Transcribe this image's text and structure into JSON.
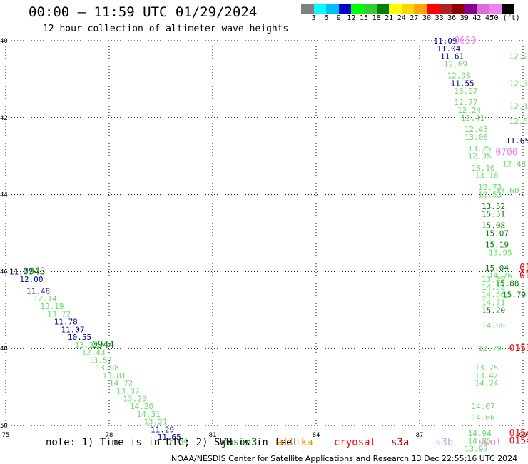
{
  "title": "00:00 – 11:59 UTC 01/29/2024",
  "subtitle": "12 hour collection of altimeter wave heights",
  "legend": {
    "colors": [
      "#808080",
      "#00ffff",
      "#00bfff",
      "#0000cd",
      "#00ff00",
      "#32cd32",
      "#008000",
      "#ffff00",
      "#ffd700",
      "#ffa500",
      "#ff0000",
      "#b22222",
      "#8b0000",
      "#8b008b",
      "#da70d6",
      "#ee82ee",
      "#000000"
    ],
    "labels": [
      "3",
      "6",
      "9",
      "12",
      "15",
      "18",
      "21",
      "24",
      "27",
      "30",
      "33",
      "36",
      "39",
      "42",
      "45",
      "70 (ft)"
    ]
  },
  "axes": {
    "lon_ticks": [
      "75",
      "78",
      "81",
      "84",
      "87",
      "90"
    ],
    "lat_ticks": [
      "40",
      "42",
      "44",
      "46",
      "48",
      "50"
    ]
  },
  "colors": {
    "dark_blue": "#00008b",
    "light_green": "#66dd66",
    "green": "#008000",
    "dark_green": "#006400",
    "red": "#ff0000",
    "pink": "#ee82ee",
    "lavender": "#b0b0ee",
    "orange": "#ff8c00",
    "darkred": "#b00000"
  },
  "chart_data": {
    "type": "scatter",
    "xlim": [
      75,
      90
    ],
    "ylim": [
      40,
      50
    ],
    "points": [
      {
        "lon": 87.4,
        "lat": 40.0,
        "v": "11.09",
        "c": "dark_blue"
      },
      {
        "lon": 87.5,
        "lat": 40.2,
        "v": "11.04",
        "c": "dark_blue"
      },
      {
        "lon": 87.6,
        "lat": 40.4,
        "v": "11.61",
        "c": "dark_blue"
      },
      {
        "lon": 87.7,
        "lat": 40.6,
        "v": "12.69",
        "c": "light_green"
      },
      {
        "lon": 87.8,
        "lat": 40.9,
        "v": "12.38",
        "c": "light_green"
      },
      {
        "lon": 87.9,
        "lat": 41.1,
        "v": "11.55",
        "c": "dark_blue"
      },
      {
        "lon": 88.0,
        "lat": 41.3,
        "v": "13.07",
        "c": "light_green"
      },
      {
        "lon": 88.0,
        "lat": 41.6,
        "v": "12.77",
        "c": "light_green"
      },
      {
        "lon": 88.1,
        "lat": 41.8,
        "v": "12.24",
        "c": "light_green"
      },
      {
        "lon": 88.2,
        "lat": 42.0,
        "v": "12.41",
        "c": "light_green"
      },
      {
        "lon": 88.3,
        "lat": 42.3,
        "v": "12.43",
        "c": "light_green"
      },
      {
        "lon": 88.3,
        "lat": 42.5,
        "v": "13.06",
        "c": "light_green"
      },
      {
        "lon": 88.4,
        "lat": 42.8,
        "v": "13.25",
        "c": "light_green"
      },
      {
        "lon": 88.4,
        "lat": 43.0,
        "v": "12.35",
        "c": "light_green"
      },
      {
        "lon": 88.5,
        "lat": 43.3,
        "v": "13.10",
        "c": "light_green"
      },
      {
        "lon": 88.6,
        "lat": 43.5,
        "v": "13.18",
        "c": "light_green"
      },
      {
        "lon": 88.7,
        "lat": 43.8,
        "v": "12.73",
        "c": "light_green"
      },
      {
        "lon": 88.7,
        "lat": 44.0,
        "v": "12.53",
        "c": "light_green"
      },
      {
        "lon": 88.8,
        "lat": 44.3,
        "v": "13.52",
        "c": "green"
      },
      {
        "lon": 88.8,
        "lat": 44.5,
        "v": "15.51",
        "c": "green"
      },
      {
        "lon": 88.8,
        "lat": 44.8,
        "v": "15.08",
        "c": "green"
      },
      {
        "lon": 88.9,
        "lat": 45.0,
        "v": "15.07",
        "c": "green"
      },
      {
        "lon": 88.9,
        "lat": 45.3,
        "v": "15.19",
        "c": "green"
      },
      {
        "lon": 89.0,
        "lat": 45.5,
        "v": "13.95",
        "c": "light_green"
      },
      {
        "lon": 88.9,
        "lat": 45.9,
        "v": "15.04",
        "c": "green"
      },
      {
        "lon": 89.0,
        "lat": 46.1,
        "v": "14.76",
        "c": "light_green"
      },
      {
        "lon": 89.2,
        "lat": 46.3,
        "v": "15.88",
        "c": "green"
      },
      {
        "lon": 89.4,
        "lat": 46.6,
        "v": "15.79",
        "c": "green"
      },
      {
        "lon": 88.8,
        "lat": 46.2,
        "v": "13.89",
        "c": "light_green"
      },
      {
        "lon": 88.8,
        "lat": 46.4,
        "v": "14.58",
        "c": "light_green"
      },
      {
        "lon": 88.8,
        "lat": 46.6,
        "v": "14.56",
        "c": "light_green"
      },
      {
        "lon": 88.8,
        "lat": 46.8,
        "v": "14.71",
        "c": "light_green"
      },
      {
        "lon": 88.8,
        "lat": 47.0,
        "v": "15.20",
        "c": "green"
      },
      {
        "lon": 88.8,
        "lat": 47.4,
        "v": "14.90",
        "c": "light_green"
      },
      {
        "lon": 88.7,
        "lat": 48.0,
        "v": "12.79",
        "c": "light_green"
      },
      {
        "lon": 88.6,
        "lat": 48.5,
        "v": "13.75",
        "c": "light_green"
      },
      {
        "lon": 88.6,
        "lat": 48.7,
        "v": "13.42",
        "c": "light_green"
      },
      {
        "lon": 88.6,
        "lat": 48.9,
        "v": "14.24",
        "c": "light_green"
      },
      {
        "lon": 88.5,
        "lat": 49.5,
        "v": "14.07",
        "c": "light_green"
      },
      {
        "lon": 88.5,
        "lat": 49.8,
        "v": "14.66",
        "c": "light_green"
      },
      {
        "lon": 88.4,
        "lat": 50.2,
        "v": "14.94",
        "c": "light_green"
      },
      {
        "lon": 88.4,
        "lat": 50.4,
        "v": "14.85",
        "c": "light_green"
      },
      {
        "lon": 88.3,
        "lat": 50.6,
        "v": "13.97",
        "c": "light_green"
      },
      {
        "lon": 89.6,
        "lat": 40.4,
        "v": "12.21",
        "c": "light_green"
      },
      {
        "lon": 89.6,
        "lat": 41.1,
        "v": "12.31",
        "c": "light_green"
      },
      {
        "lon": 89.6,
        "lat": 41.7,
        "v": "12.17",
        "c": "light_green"
      },
      {
        "lon": 89.6,
        "lat": 42.1,
        "v": "12.55",
        "c": "light_green"
      },
      {
        "lon": 89.5,
        "lat": 42.6,
        "v": "11.65",
        "c": "dark_blue"
      },
      {
        "lon": 89.4,
        "lat": 43.2,
        "v": "12.48",
        "c": "light_green"
      },
      {
        "lon": 89.2,
        "lat": 43.9,
        "v": "13.60",
        "c": "light_green"
      },
      {
        "lon": 75.1,
        "lat": 46.0,
        "v": "11.77",
        "c": "dark_blue"
      },
      {
        "lon": 75.4,
        "lat": 46.2,
        "v": "12.00",
        "c": "dark_blue"
      },
      {
        "lon": 75.6,
        "lat": 46.5,
        "v": "11.48",
        "c": "dark_blue"
      },
      {
        "lon": 75.8,
        "lat": 46.7,
        "v": "12.14",
        "c": "light_green"
      },
      {
        "lon": 76.0,
        "lat": 46.9,
        "v": "13.19",
        "c": "light_green"
      },
      {
        "lon": 76.2,
        "lat": 47.1,
        "v": "13.72",
        "c": "light_green"
      },
      {
        "lon": 76.4,
        "lat": 47.3,
        "v": "11.78",
        "c": "dark_blue"
      },
      {
        "lon": 76.6,
        "lat": 47.5,
        "v": "11.07",
        "c": "dark_blue"
      },
      {
        "lon": 76.8,
        "lat": 47.7,
        "v": "10.55",
        "c": "dark_blue"
      },
      {
        "lon": 77.0,
        "lat": 47.9,
        "v": "13.22",
        "c": "light_green"
      },
      {
        "lon": 77.2,
        "lat": 48.1,
        "v": "12.43",
        "c": "light_green"
      },
      {
        "lon": 77.4,
        "lat": 48.3,
        "v": "13.57",
        "c": "light_green"
      },
      {
        "lon": 77.6,
        "lat": 48.5,
        "v": "13.98",
        "c": "light_green"
      },
      {
        "lon": 77.8,
        "lat": 48.7,
        "v": "13.81",
        "c": "light_green"
      },
      {
        "lon": 78.0,
        "lat": 48.9,
        "v": "14.72",
        "c": "light_green"
      },
      {
        "lon": 78.2,
        "lat": 49.1,
        "v": "13.37",
        "c": "light_green"
      },
      {
        "lon": 78.4,
        "lat": 49.3,
        "v": "13.23",
        "c": "light_green"
      },
      {
        "lon": 78.6,
        "lat": 49.5,
        "v": "14.20",
        "c": "light_green"
      },
      {
        "lon": 78.8,
        "lat": 49.7,
        "v": "14.31",
        "c": "light_green"
      },
      {
        "lon": 79.0,
        "lat": 49.9,
        "v": "13.21",
        "c": "light_green"
      },
      {
        "lon": 79.2,
        "lat": 50.1,
        "v": "11.29",
        "c": "dark_blue"
      },
      {
        "lon": 79.4,
        "lat": 50.3,
        "v": "11.65",
        "c": "dark_blue"
      },
      {
        "lon": 79.6,
        "lat": 50.4,
        "v": "13.84",
        "c": "light_green"
      }
    ],
    "time_labels": [
      {
        "lon": 75.5,
        "lat": 46.0,
        "v": "0943",
        "c": "green"
      },
      {
        "lon": 77.5,
        "lat": 47.9,
        "v": "0944",
        "c": "green"
      },
      {
        "lon": 88.0,
        "lat": 40.0,
        "v": "0659",
        "c": "pink"
      },
      {
        "lon": 89.2,
        "lat": 42.9,
        "v": "0700",
        "c": "pink"
      },
      {
        "lon": 89.9,
        "lat": 45.9,
        "v": "0152",
        "c": "red"
      },
      {
        "lon": 89.9,
        "lat": 46.1,
        "v": "0153",
        "c": "red"
      },
      {
        "lon": 89.6,
        "lat": 48.0,
        "v": "0153",
        "c": "red"
      },
      {
        "lon": 89.6,
        "lat": 50.2,
        "v": "0154",
        "c": "red"
      },
      {
        "lon": 89.6,
        "lat": 50.4,
        "v": "0154",
        "c": "red"
      }
    ]
  },
  "note": "note: 1) Time is in UTC; 2) SWH is in feet",
  "satellites": [
    {
      "name": "jason3",
      "c": "dark_green"
    },
    {
      "name": "altika",
      "c": "orange"
    },
    {
      "name": "cryosat",
      "c": "red"
    },
    {
      "name": "s3a",
      "c": "darkred"
    },
    {
      "name": "s3b",
      "c": "lavender"
    },
    {
      "name": "swot",
      "c": "pink"
    }
  ],
  "footer": "NOAA/NESDIS Center for Satellite Applications and Research    13 Dec 22:55:16 UTC 2024"
}
